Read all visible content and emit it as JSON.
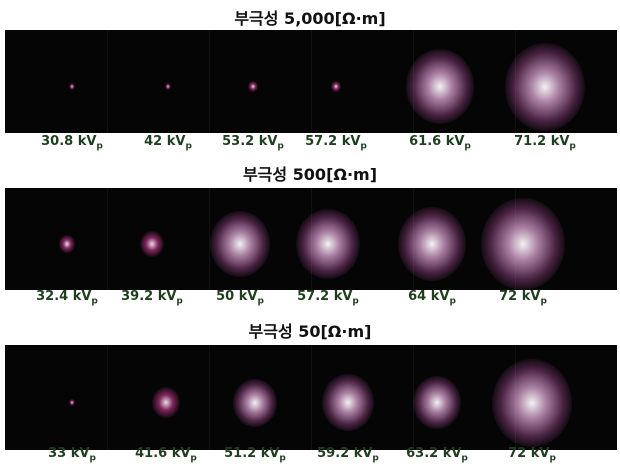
{
  "panels": [
    {
      "title": "부극성 5,000[Ω·m]",
      "labels": [
        {
          "text": "30.8 kV",
          "sub": "p"
        },
        {
          "text": "42 kV",
          "sub": "p"
        },
        {
          "text": "53.2 kV",
          "sub": "p"
        },
        {
          "text": "57.2 kV",
          "sub": "p"
        },
        {
          "text": "61.6 kV",
          "sub": "p"
        },
        {
          "text": "71.2 kV",
          "sub": "p"
        }
      ]
    },
    {
      "title": "부극성 500[Ω·m]",
      "labels": [
        {
          "text": "32.4 kV",
          "sub": "p"
        },
        {
          "text": "39.2 kV",
          "sub": "p"
        },
        {
          "text": "50 kV",
          "sub": "p"
        },
        {
          "text": "57.2 kV",
          "sub": "p"
        },
        {
          "text": "64 kV",
          "sub": "p"
        },
        {
          "text": "72 kV",
          "sub": "p"
        }
      ]
    },
    {
      "title": "부극성 50[Ω·m]",
      "labels": [
        {
          "text": "33 kV",
          "sub": "p"
        },
        {
          "text": "41.6 kV",
          "sub": "p"
        },
        {
          "text": "51.2 kV",
          "sub": "p"
        },
        {
          "text": "59.2 kV",
          "sub": "p"
        },
        {
          "text": "63.2 kV",
          "sub": "p"
        },
        {
          "text": "72 kV",
          "sub": "p"
        }
      ]
    }
  ]
}
